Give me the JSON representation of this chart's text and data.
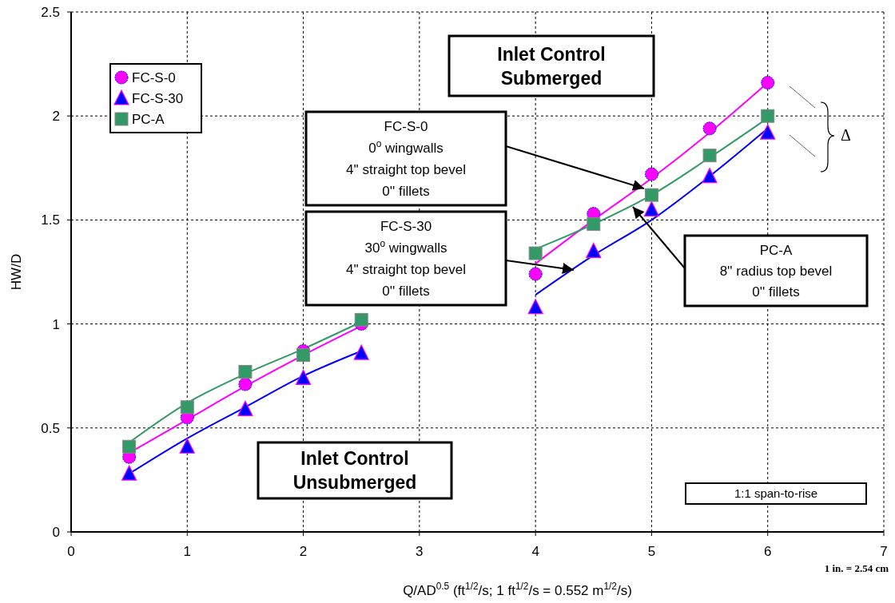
{
  "chart_data": {
    "type": "scatter",
    "xlabel": "Q/AD$^{0.5}$ (ft$^{1/2}$/s; 1 ft$^{1/2}$/s = 0.552 m$^{1/2}$/s)",
    "ylabel": "HW/D",
    "xlim": [
      0,
      7
    ],
    "ylim": [
      0,
      2.5
    ],
    "xticks": [
      0,
      1,
      2,
      3,
      4,
      5,
      6,
      7
    ],
    "yticks": [
      0,
      0.5,
      1,
      1.5,
      2,
      2.5
    ],
    "grid": true,
    "legend": "top left",
    "series": [
      {
        "name": "FC-S-0",
        "marker": "circle",
        "color": "#ff00ff",
        "x": [
          0.5,
          1,
          1.5,
          2,
          2.5,
          4,
          4.5,
          5,
          5.5,
          6
        ],
        "values": [
          0.36,
          0.55,
          0.71,
          0.87,
          1.0,
          1.24,
          1.53,
          1.72,
          1.94,
          2.16
        ]
      },
      {
        "name": "FC-S-30",
        "marker": "triangle",
        "color": "#0000ff",
        "x": [
          0.5,
          1,
          1.5,
          2,
          2.5,
          4,
          4.5,
          5,
          5.5,
          6
        ],
        "values": [
          0.28,
          0.41,
          0.59,
          0.74,
          0.86,
          1.08,
          1.35,
          1.55,
          1.71,
          1.92
        ]
      },
      {
        "name": "PC-A",
        "marker": "square",
        "color": "#339966",
        "x": [
          0.5,
          1,
          1.5,
          2,
          2.5,
          4,
          4.5,
          5,
          5.5,
          6
        ],
        "values": [
          0.41,
          0.6,
          0.77,
          0.85,
          1.02,
          1.34,
          1.48,
          1.62,
          1.81,
          2.0
        ]
      },
      {
        "type": "line",
        "color": "#ff00ff",
        "x": [
          0.5,
          1,
          1.5,
          2,
          2.5
        ],
        "values": [
          0.38,
          0.54,
          0.7,
          0.85,
          0.99
        ]
      },
      {
        "type": "line",
        "color": "#0000ff",
        "x": [
          0.5,
          1,
          1.5,
          2,
          2.5
        ],
        "values": [
          0.28,
          0.45,
          0.6,
          0.75,
          0.87
        ]
      },
      {
        "type": "line",
        "color": "#339966",
        "x": [
          0.5,
          1,
          1.5,
          2,
          2.5
        ],
        "values": [
          0.43,
          0.62,
          0.76,
          0.88,
          1.01
        ]
      },
      {
        "type": "line",
        "color": "#ff00ff",
        "x": [
          4,
          4.5,
          5,
          5.5,
          6
        ],
        "values": [
          1.29,
          1.5,
          1.7,
          1.92,
          2.16
        ]
      },
      {
        "type": "line",
        "color": "#0000ff",
        "x": [
          4,
          4.5,
          5,
          5.5,
          6
        ],
        "values": [
          1.14,
          1.33,
          1.5,
          1.71,
          1.94
        ]
      },
      {
        "type": "line",
        "color": "#339966",
        "x": [
          4,
          4.5,
          5,
          5.5,
          6
        ],
        "values": [
          1.36,
          1.48,
          1.62,
          1.8,
          1.99
        ]
      }
    ],
    "annotations": [
      "Inlet Control\nSubmerged",
      "FC-S-0\n0$^{o}$  wingwalls\n4'' straight top bevel\n0'' fillets",
      "FC-S-30\n30$^{o}$ wingwalls\n4'' straight top bevel\n0'' fillets",
      "PC-A\n8'' radius top bevel\n0'' fillets",
      "Inlet Control\nUnsubmerged",
      "1:1 span-to-rise",
      "Δ",
      "1 in. = 2.54 cm"
    ]
  }
}
